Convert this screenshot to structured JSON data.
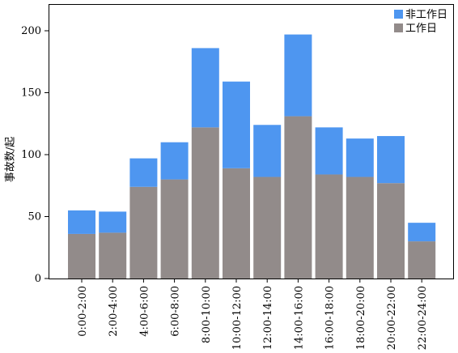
{
  "chart_data": {
    "type": "bar",
    "stacked": true,
    "title": "",
    "xlabel": "",
    "ylabel": "事故数/起",
    "ylim": [
      0,
      200
    ],
    "yticks": [
      0,
      50,
      100,
      150,
      200
    ],
    "grid": false,
    "legend_position": "top-right",
    "categories": [
      "0:00-2:00",
      "2:00-4:00",
      "4:00-6:00",
      "6:00-8:00",
      "8:00-10:00",
      "10:00-12:00",
      "12:00-14:00",
      "14:00-16:00",
      "16:00-18:00",
      "18:00-20:00",
      "20:00-22:00",
      "22:00-24:00"
    ],
    "series": [
      {
        "name": "工作日",
        "color": "#928b8a",
        "values": [
          36,
          37,
          74,
          80,
          122,
          89,
          82,
          131,
          84,
          82,
          77,
          30
        ]
      },
      {
        "name": "非工作日",
        "color": "#4e96f0",
        "values": [
          19,
          17,
          23,
          30,
          64,
          70,
          42,
          66,
          38,
          31,
          38,
          15
        ]
      }
    ],
    "legend": [
      {
        "name": "非工作日",
        "color": "#4e96f0"
      },
      {
        "name": "工作日",
        "color": "#928b8a"
      }
    ]
  }
}
